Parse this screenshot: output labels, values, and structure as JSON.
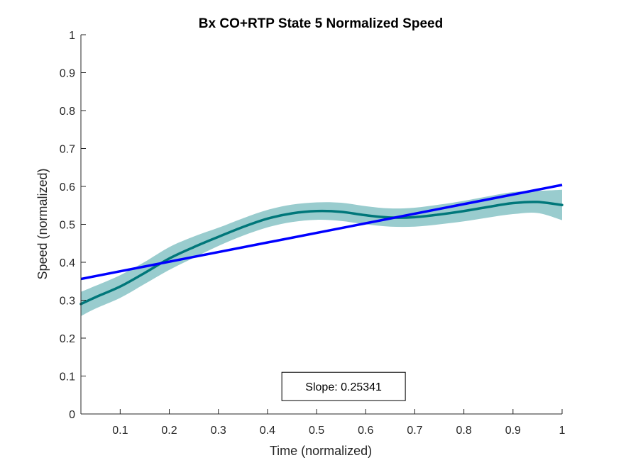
{
  "chart_data": {
    "type": "line",
    "title": "Bx  CO+RTP State 5 Normalized Speed",
    "xlabel": "Time (normalized)",
    "ylabel": "Speed (normalized)",
    "xlim": [
      0.02,
      1.0
    ],
    "ylim": [
      0,
      1
    ],
    "xticks": [
      0.1,
      0.2,
      0.3,
      0.4,
      0.5,
      0.6,
      0.7,
      0.8,
      0.9,
      1
    ],
    "xtick_labels": [
      "0.1",
      "0.2",
      "0.3",
      "0.4",
      "0.5",
      "0.6",
      "0.7",
      "0.8",
      "0.9",
      "1"
    ],
    "yticks": [
      0,
      0.1,
      0.2,
      0.3,
      0.4,
      0.5,
      0.6,
      0.7,
      0.8,
      0.9,
      1
    ],
    "ytick_labels": [
      "0",
      "0.1",
      "0.2",
      "0.3",
      "0.4",
      "0.5",
      "0.6",
      "0.7",
      "0.8",
      "0.9",
      "1"
    ],
    "grid": false,
    "series": [
      {
        "kind": "mean_with_band",
        "color": "#00777A",
        "band_color": "#99CCCE",
        "x": [
          0.02,
          0.05,
          0.1,
          0.15,
          0.2,
          0.25,
          0.3,
          0.35,
          0.4,
          0.45,
          0.5,
          0.55,
          0.6,
          0.65,
          0.7,
          0.75,
          0.8,
          0.85,
          0.9,
          0.95,
          1.0
        ],
        "y": [
          0.29,
          0.308,
          0.336,
          0.372,
          0.41,
          0.44,
          0.467,
          0.493,
          0.515,
          0.529,
          0.535,
          0.533,
          0.524,
          0.518,
          0.519,
          0.526,
          0.535,
          0.546,
          0.556,
          0.559,
          0.551
        ],
        "lower": [
          0.258,
          0.278,
          0.306,
          0.343,
          0.38,
          0.412,
          0.443,
          0.47,
          0.492,
          0.506,
          0.512,
          0.509,
          0.5,
          0.494,
          0.494,
          0.5,
          0.508,
          0.518,
          0.527,
          0.53,
          0.511
        ],
        "upper": [
          0.322,
          0.338,
          0.366,
          0.401,
          0.44,
          0.468,
          0.491,
          0.516,
          0.538,
          0.552,
          0.558,
          0.557,
          0.548,
          0.542,
          0.544,
          0.552,
          0.562,
          0.574,
          0.585,
          0.588,
          0.591
        ]
      },
      {
        "kind": "fit_line",
        "color": "#0000FF",
        "x": [
          0.02,
          1.0
        ],
        "y": [
          0.356,
          0.604
        ]
      }
    ],
    "annotation": {
      "text": "Slope: 0.25341",
      "anchor_x": 0.5,
      "anchor_y": 0.0725
    }
  }
}
